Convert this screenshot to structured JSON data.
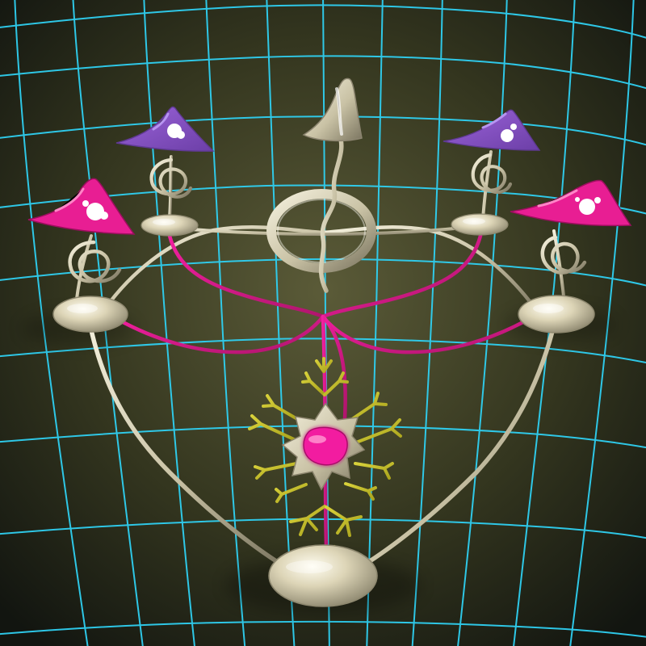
{
  "scene": {
    "colors": {
      "background_center": "#5b5b38",
      "background_mid": "#34361f",
      "background_edge": "#121510",
      "grid": "#2fd0f2",
      "metal_light": "#f4f0dd",
      "metal_mid": "#c9c2a5",
      "metal_dark": "#7b7560",
      "pink": "#f21fa0",
      "pink_dark": "#b0156d",
      "purple": "#9b63d9",
      "purple_dark": "#6c3fa7",
      "magenta": "#e81e93",
      "gold": "#d9d23b",
      "gold_dark": "#a8a21c",
      "white_spot": "#ffffff"
    },
    "objects": [
      "central-silver-cone",
      "left-purple-cone",
      "right-purple-cone",
      "left-magenta-cone",
      "right-magenta-cone",
      "central-ring",
      "small-coils",
      "platform-discs",
      "pink-neural-lines",
      "golden-neuron",
      "bottom-base-disc"
    ]
  }
}
